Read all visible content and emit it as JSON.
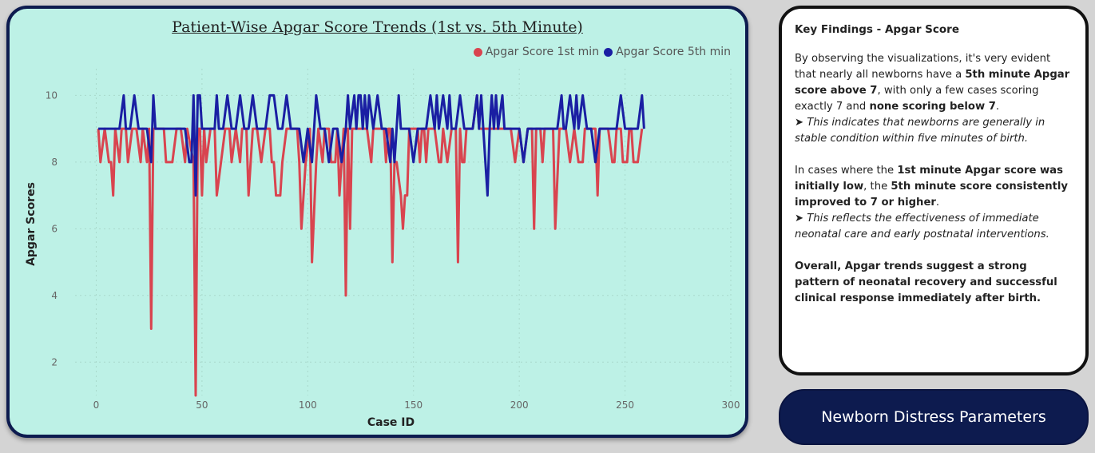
{
  "chart_data": {
    "type": "line",
    "title": "Patient-Wise Apgar Score Trends (1st vs. 5th Minute)",
    "xlabel": "Case ID",
    "ylabel": "Apgar Scores",
    "xlim": [
      -10,
      300
    ],
    "ylim": [
      1,
      10.8
    ],
    "xticks": [
      0,
      50,
      100,
      150,
      200,
      250,
      300
    ],
    "yticks": [
      2,
      4,
      6,
      8,
      10
    ],
    "grid": true,
    "legend_position": "top-right",
    "series": [
      {
        "name": "Apgar Score 1st min",
        "color": "#d9444f",
        "points": [
          [
            1,
            9
          ],
          [
            2,
            8
          ],
          [
            4,
            9
          ],
          [
            6,
            8
          ],
          [
            7,
            8
          ],
          [
            8,
            7
          ],
          [
            9,
            9
          ],
          [
            11,
            8
          ],
          [
            12,
            9
          ],
          [
            14,
            9
          ],
          [
            15,
            8
          ],
          [
            17,
            9
          ],
          [
            19,
            9
          ],
          [
            21,
            8
          ],
          [
            22,
            9
          ],
          [
            24,
            8
          ],
          [
            25,
            9
          ],
          [
            26,
            3
          ],
          [
            27,
            9
          ],
          [
            28,
            9
          ],
          [
            30,
            9
          ],
          [
            32,
            9
          ],
          [
            33,
            8
          ],
          [
            35,
            8
          ],
          [
            36,
            8
          ],
          [
            38,
            9
          ],
          [
            40,
            9
          ],
          [
            42,
            8
          ],
          [
            43,
            9
          ],
          [
            46,
            8
          ],
          [
            47,
            1
          ],
          [
            48,
            9
          ],
          [
            49,
            9
          ],
          [
            50,
            7
          ],
          [
            51,
            9
          ],
          [
            52,
            8
          ],
          [
            54,
            9
          ],
          [
            56,
            9
          ],
          [
            57,
            7
          ],
          [
            59,
            8
          ],
          [
            61,
            9
          ],
          [
            63,
            9
          ],
          [
            64,
            8
          ],
          [
            66,
            9
          ],
          [
            68,
            8
          ],
          [
            69,
            9
          ],
          [
            71,
            9
          ],
          [
            72,
            7
          ],
          [
            74,
            9
          ],
          [
            76,
            9
          ],
          [
            78,
            8
          ],
          [
            80,
            9
          ],
          [
            82,
            9
          ],
          [
            83,
            8
          ],
          [
            84,
            8
          ],
          [
            85,
            7
          ],
          [
            87,
            7
          ],
          [
            88,
            8
          ],
          [
            90,
            9
          ],
          [
            92,
            9
          ],
          [
            93,
            9
          ],
          [
            95,
            9
          ],
          [
            96,
            8
          ],
          [
            97,
            6
          ],
          [
            99,
            8
          ],
          [
            101,
            9
          ],
          [
            102,
            5
          ],
          [
            104,
            8
          ],
          [
            105,
            9
          ],
          [
            107,
            8
          ],
          [
            108,
            9
          ],
          [
            110,
            9
          ],
          [
            111,
            8
          ],
          [
            113,
            8
          ],
          [
            114,
            9
          ],
          [
            115,
            7
          ],
          [
            117,
            9
          ],
          [
            118,
            4
          ],
          [
            119,
            9
          ],
          [
            120,
            6
          ],
          [
            121,
            9
          ],
          [
            122,
            9
          ],
          [
            124,
            9
          ],
          [
            126,
            9
          ],
          [
            127,
            9
          ],
          [
            128,
            9
          ],
          [
            130,
            8
          ],
          [
            131,
            9
          ],
          [
            132,
            9
          ],
          [
            134,
            9
          ],
          [
            136,
            9
          ],
          [
            137,
            8
          ],
          [
            138,
            9
          ],
          [
            139,
            9
          ],
          [
            140,
            5
          ],
          [
            141,
            8
          ],
          [
            142,
            8
          ],
          [
            144,
            7
          ],
          [
            145,
            6
          ],
          [
            146,
            7
          ],
          [
            147,
            7
          ],
          [
            148,
            9
          ],
          [
            149,
            9
          ],
          [
            150,
            9
          ],
          [
            152,
            9
          ],
          [
            153,
            8
          ],
          [
            154,
            9
          ],
          [
            155,
            9
          ],
          [
            156,
            8
          ],
          [
            157,
            9
          ],
          [
            158,
            9
          ],
          [
            160,
            9
          ],
          [
            162,
            8
          ],
          [
            163,
            8
          ],
          [
            164,
            9
          ],
          [
            166,
            8
          ],
          [
            168,
            9
          ],
          [
            170,
            9
          ],
          [
            171,
            5
          ],
          [
            172,
            9
          ],
          [
            173,
            8
          ],
          [
            174,
            8
          ],
          [
            175,
            9
          ],
          [
            176,
            9
          ],
          [
            178,
            9
          ],
          [
            180,
            10
          ],
          [
            181,
            9
          ],
          [
            182,
            9
          ],
          [
            184,
            9
          ],
          [
            186,
            9
          ],
          [
            188,
            9
          ],
          [
            190,
            9
          ],
          [
            192,
            9
          ],
          [
            194,
            9
          ],
          [
            196,
            9
          ],
          [
            198,
            8
          ],
          [
            200,
            9
          ],
          [
            202,
            8
          ],
          [
            204,
            9
          ],
          [
            206,
            9
          ],
          [
            207,
            6
          ],
          [
            208,
            9
          ],
          [
            210,
            9
          ],
          [
            211,
            8
          ],
          [
            212,
            9
          ],
          [
            214,
            9
          ],
          [
            216,
            9
          ],
          [
            217,
            6
          ],
          [
            219,
            9
          ],
          [
            220,
            9
          ],
          [
            222,
            9
          ],
          [
            224,
            8
          ],
          [
            226,
            9
          ],
          [
            228,
            8
          ],
          [
            230,
            8
          ],
          [
            231,
            9
          ],
          [
            232,
            9
          ],
          [
            234,
            9
          ],
          [
            236,
            9
          ],
          [
            237,
            7
          ],
          [
            238,
            9
          ],
          [
            240,
            9
          ],
          [
            242,
            9
          ],
          [
            244,
            8
          ],
          [
            245,
            8
          ],
          [
            246,
            9
          ],
          [
            248,
            9
          ],
          [
            249,
            8
          ],
          [
            251,
            8
          ],
          [
            252,
            9
          ],
          [
            253,
            9
          ],
          [
            254,
            8
          ],
          [
            255,
            8
          ],
          [
            256,
            8
          ],
          [
            258,
            9
          ]
        ]
      },
      {
        "name": "Apgar Score 5th min",
        "color": "#1a1fa3",
        "points": [
          [
            1,
            9
          ],
          [
            3,
            9
          ],
          [
            5,
            9
          ],
          [
            7,
            9
          ],
          [
            9,
            9
          ],
          [
            11,
            9
          ],
          [
            13,
            10
          ],
          [
            14,
            9
          ],
          [
            16,
            9
          ],
          [
            18,
            10
          ],
          [
            20,
            9
          ],
          [
            22,
            9
          ],
          [
            24,
            9
          ],
          [
            26,
            8
          ],
          [
            27,
            10
          ],
          [
            28,
            9
          ],
          [
            30,
            9
          ],
          [
            32,
            9
          ],
          [
            34,
            9
          ],
          [
            36,
            9
          ],
          [
            38,
            9
          ],
          [
            40,
            9
          ],
          [
            42,
            9
          ],
          [
            44,
            8
          ],
          [
            45,
            8
          ],
          [
            46,
            10
          ],
          [
            47,
            7
          ],
          [
            48,
            10
          ],
          [
            49,
            10
          ],
          [
            50,
            9
          ],
          [
            52,
            9
          ],
          [
            54,
            9
          ],
          [
            56,
            9
          ],
          [
            57,
            10
          ],
          [
            58,
            9
          ],
          [
            60,
            9
          ],
          [
            62,
            10
          ],
          [
            64,
            9
          ],
          [
            66,
            9
          ],
          [
            68,
            10
          ],
          [
            70,
            9
          ],
          [
            72,
            9
          ],
          [
            74,
            10
          ],
          [
            76,
            9
          ],
          [
            78,
            9
          ],
          [
            80,
            9
          ],
          [
            82,
            10
          ],
          [
            84,
            10
          ],
          [
            86,
            9
          ],
          [
            88,
            9
          ],
          [
            90,
            10
          ],
          [
            92,
            9
          ],
          [
            94,
            9
          ],
          [
            96,
            9
          ],
          [
            98,
            8
          ],
          [
            100,
            9
          ],
          [
            102,
            8
          ],
          [
            104,
            10
          ],
          [
            106,
            9
          ],
          [
            108,
            9
          ],
          [
            110,
            8
          ],
          [
            112,
            9
          ],
          [
            114,
            9
          ],
          [
            116,
            8
          ],
          [
            118,
            9
          ],
          [
            119,
            10
          ],
          [
            120,
            9
          ],
          [
            122,
            10
          ],
          [
            123,
            9
          ],
          [
            124,
            10
          ],
          [
            125,
            10
          ],
          [
            126,
            9
          ],
          [
            127,
            10
          ],
          [
            128,
            9
          ],
          [
            129,
            10
          ],
          [
            131,
            9
          ],
          [
            133,
            10
          ],
          [
            135,
            9
          ],
          [
            137,
            9
          ],
          [
            139,
            8
          ],
          [
            140,
            9
          ],
          [
            141,
            8
          ],
          [
            143,
            10
          ],
          [
            144,
            9
          ],
          [
            146,
            9
          ],
          [
            148,
            9
          ],
          [
            150,
            8
          ],
          [
            152,
            9
          ],
          [
            154,
            9
          ],
          [
            156,
            9
          ],
          [
            158,
            10
          ],
          [
            160,
            9
          ],
          [
            161,
            10
          ],
          [
            162,
            9
          ],
          [
            164,
            10
          ],
          [
            166,
            9
          ],
          [
            167,
            10
          ],
          [
            168,
            9
          ],
          [
            170,
            9
          ],
          [
            172,
            10
          ],
          [
            174,
            9
          ],
          [
            176,
            9
          ],
          [
            178,
            9
          ],
          [
            180,
            10
          ],
          [
            181,
            9
          ],
          [
            182,
            10
          ],
          [
            183,
            9
          ],
          [
            185,
            7
          ],
          [
            186,
            9
          ],
          [
            187,
            10
          ],
          [
            188,
            9
          ],
          [
            189,
            10
          ],
          [
            190,
            9
          ],
          [
            192,
            10
          ],
          [
            193,
            9
          ],
          [
            194,
            9
          ],
          [
            196,
            9
          ],
          [
            198,
            9
          ],
          [
            200,
            9
          ],
          [
            202,
            8
          ],
          [
            204,
            9
          ],
          [
            206,
            9
          ],
          [
            208,
            9
          ],
          [
            210,
            9
          ],
          [
            212,
            9
          ],
          [
            214,
            9
          ],
          [
            216,
            9
          ],
          [
            218,
            9
          ],
          [
            220,
            10
          ],
          [
            221,
            9
          ],
          [
            222,
            9
          ],
          [
            224,
            10
          ],
          [
            226,
            9
          ],
          [
            227,
            10
          ],
          [
            228,
            9
          ],
          [
            230,
            10
          ],
          [
            232,
            9
          ],
          [
            234,
            9
          ],
          [
            236,
            8
          ],
          [
            238,
            9
          ],
          [
            240,
            9
          ],
          [
            242,
            9
          ],
          [
            244,
            9
          ],
          [
            246,
            9
          ],
          [
            248,
            10
          ],
          [
            250,
            9
          ],
          [
            252,
            9
          ],
          [
            254,
            9
          ],
          [
            256,
            9
          ],
          [
            258,
            10
          ],
          [
            259,
            9
          ]
        ]
      }
    ]
  },
  "findings": {
    "title": "Key Findings - Apgar Score",
    "p1_a": "By observing the visualizations, it's very evident that nearly all newborns have a ",
    "p1_b": "5th minute Apgar score above 7",
    "p1_c": ", with only a few cases scoring exactly 7 and ",
    "p1_d": "none scoring below 7",
    "p1_e": ".",
    "p1_note": "➤ This indicates that newborns are generally in stable condition within five minutes of birth.",
    "p2_a": "In cases where the ",
    "p2_b": "1st minute Apgar score was initially low",
    "p2_c": ", the ",
    "p2_d": "5th minute score consistently improved to 7 or higher",
    "p2_e": ".",
    "p2_note": "➤ This reflects the effectiveness of immediate neonatal care and early postnatal interventions.",
    "p3": "Overall, Apgar trends suggest a strong pattern of neonatal recovery and successful clinical response immediately after birth."
  },
  "nav": {
    "button_label": "Newborn Distress Parameters"
  }
}
